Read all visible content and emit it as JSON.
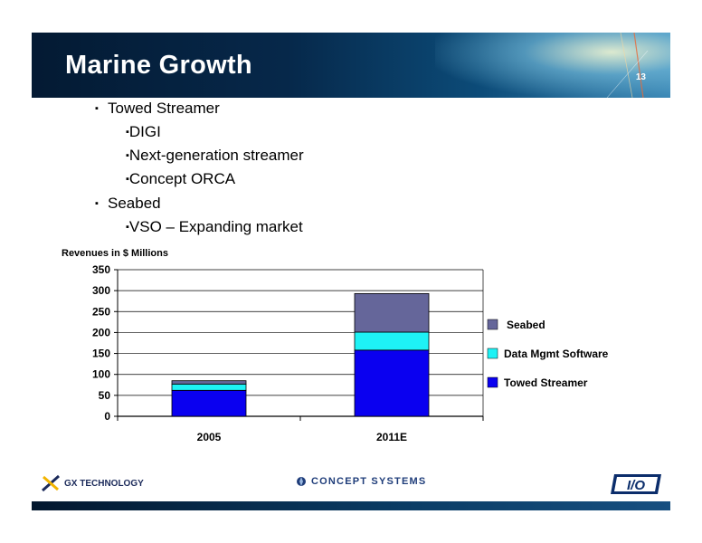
{
  "slide": {
    "title": "Marine Growth",
    "page_number": "13",
    "bullets": [
      {
        "text": "Towed Streamer",
        "level": 1
      },
      {
        "text": "DIGI",
        "level": 2
      },
      {
        "text": "Next-generation streamer",
        "level": 2
      },
      {
        "text": "Concept ORCA",
        "level": 2
      },
      {
        "text": "Seabed",
        "level": 1
      },
      {
        "text": "VSO – Expanding market",
        "level": 2
      }
    ],
    "bullet_glyph": "▪",
    "revenue_label": "Revenues in $ Millions"
  },
  "logos": {
    "gx": "GX TECHNOLOGY",
    "concept": "CONCEPT SYSTEMS",
    "io": "I/O"
  },
  "colors": {
    "towed": "#0a00f0",
    "data_mgmt": "#1ef2f5",
    "seabed": "#65669a"
  },
  "chart_data": {
    "type": "bar",
    "stacked": true,
    "categories": [
      "2005",
      "2011E"
    ],
    "series": [
      {
        "name": "Towed Streamer",
        "values": [
          62,
          158
        ]
      },
      {
        "name": "Data Mgmt Software",
        "values": [
          15,
          43
        ]
      },
      {
        "name": "Seabed",
        "values": [
          8,
          92
        ]
      }
    ],
    "ylabel": "Revenues in $ Millions",
    "ylim": [
      0,
      350
    ],
    "yticks": [
      "0",
      "50",
      "100",
      "150",
      "200",
      "250",
      "300",
      "350"
    ],
    "grid": true,
    "legend_position": "right"
  }
}
